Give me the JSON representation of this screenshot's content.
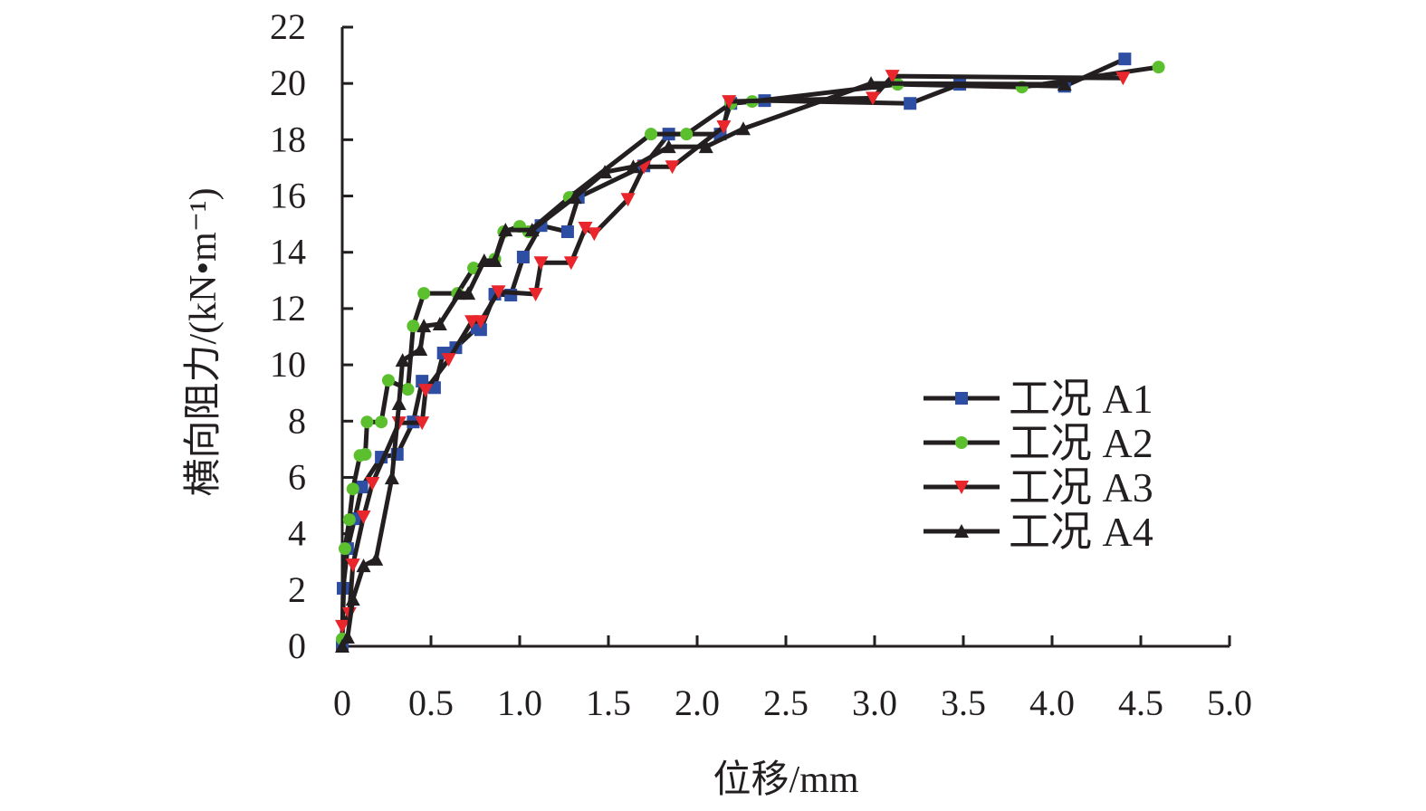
{
  "chart_data": {
    "type": "line",
    "title": "",
    "xlabel": "位移/mm",
    "ylabel": "横向阻力/(kN•m⁻¹)",
    "xlim": [
      0,
      5.0
    ],
    "ylim": [
      0,
      22
    ],
    "xticks": [
      "0",
      "0.5",
      "1.0",
      "1.5",
      "2.0",
      "2.5",
      "3.0",
      "3.5",
      "4.0",
      "4.5",
      "5.0"
    ],
    "yticks": [
      "0",
      "2",
      "4",
      "6",
      "8",
      "10",
      "12",
      "14",
      "16",
      "18",
      "20",
      "22"
    ],
    "grid": false,
    "legend_position": "right",
    "series": [
      {
        "name": "工况 A1",
        "marker": "square",
        "color": "#2e4ea3",
        "x": [
          0,
          0.005,
          0.03,
          0.07,
          0.11,
          0.22,
          0.31,
          0.4,
          0.45,
          0.52,
          0.57,
          0.64,
          0.76,
          0.78,
          0.86,
          0.95,
          1.02,
          1.12,
          1.27,
          1.33,
          1.7,
          1.84,
          2.13,
          2.19,
          2.38,
          3.2,
          3.48,
          4.07,
          4.41
        ],
        "y": [
          0,
          2.06,
          3.47,
          4.53,
          5.66,
          6.72,
          6.82,
          7.97,
          9.42,
          9.19,
          10.42,
          10.61,
          11.32,
          11.25,
          12.51,
          12.48,
          13.83,
          14.95,
          14.73,
          15.95,
          17.07,
          18.2,
          18.2,
          19.29,
          19.39,
          19.29,
          19.97,
          19.9,
          20.87
        ]
      },
      {
        "name": "工况 A2",
        "marker": "circle",
        "color": "#5bbf2e",
        "x": [
          0,
          0.015,
          0.04,
          0.06,
          0.1,
          0.13,
          0.14,
          0.22,
          0.26,
          0.37,
          0.4,
          0.46,
          0.65,
          0.74,
          0.86,
          0.91,
          1.0,
          1.05,
          1.28,
          1.74,
          1.94,
          2.19,
          2.31,
          3.13,
          3.83,
          4.6
        ],
        "y": [
          0.26,
          3.47,
          4.5,
          5.59,
          6.78,
          6.82,
          7.97,
          7.97,
          9.45,
          9.13,
          11.38,
          12.54,
          12.54,
          13.44,
          13.76,
          14.73,
          14.92,
          14.73,
          15.95,
          18.2,
          18.2,
          19.29,
          19.36,
          19.97,
          19.87,
          20.58
        ]
      },
      {
        "name": "工况 A3",
        "marker": "triangle-down",
        "color": "#e8262b",
        "x": [
          0,
          0.04,
          0.06,
          0.12,
          0.17,
          0.32,
          0.45,
          0.47,
          0.6,
          0.73,
          0.78,
          0.88,
          1.09,
          1.12,
          1.29,
          1.37,
          1.42,
          1.61,
          1.7,
          1.86,
          2.15,
          2.18,
          2.99,
          3.1,
          4.4
        ],
        "y": [
          0.71,
          1.16,
          2.89,
          4.6,
          5.79,
          7.94,
          7.94,
          9.1,
          10.19,
          11.54,
          11.54,
          12.6,
          12.51,
          13.63,
          13.63,
          14.86,
          14.66,
          15.88,
          17.04,
          17.04,
          18.46,
          19.36,
          19.48,
          20.26,
          20.19
        ]
      },
      {
        "name": "工况 A4",
        "marker": "triangle-up",
        "color": "#231f20",
        "x": [
          0,
          0.03,
          0.06,
          0.12,
          0.19,
          0.28,
          0.32,
          0.34,
          0.44,
          0.46,
          0.55,
          0.66,
          0.71,
          0.8,
          0.86,
          0.92,
          1.07,
          1.31,
          1.48,
          1.64,
          1.84,
          2.05,
          2.26,
          2.98,
          4.07
        ],
        "y": [
          0,
          0.32,
          1.67,
          2.86,
          3.09,
          5.98,
          8.62,
          10.16,
          10.55,
          11.38,
          11.45,
          12.54,
          12.54,
          13.7,
          13.7,
          14.79,
          14.79,
          15.95,
          16.85,
          17.04,
          17.75,
          17.75,
          18.39,
          20,
          19.97
        ]
      }
    ]
  }
}
